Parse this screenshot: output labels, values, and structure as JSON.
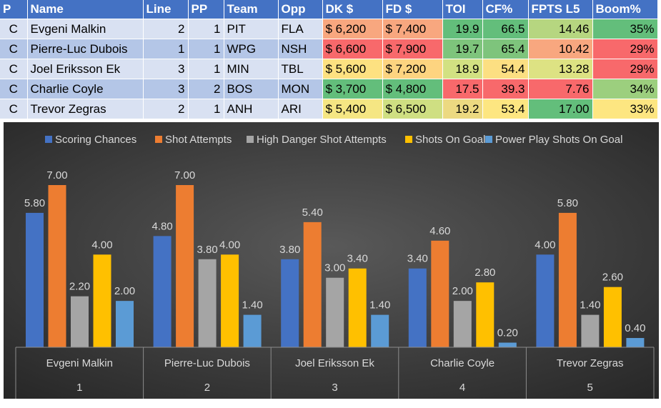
{
  "table": {
    "headers": [
      "P",
      "Name",
      "Line",
      "PP",
      "Team",
      "Opp",
      "DK $",
      "FD $",
      "TOI",
      "CF%",
      "FPTS L5",
      "Boom%"
    ],
    "rows": [
      {
        "p": "C",
        "name": "Evgeni Malkin",
        "line": "2",
        "pp": "1",
        "team": "PIT",
        "opp": "FLA",
        "dk": "$ 6,200",
        "fd": "$ 7,400",
        "toi": "19.9",
        "cf": "66.5",
        "fpts": "14.46",
        "boom": "35%"
      },
      {
        "p": "C",
        "name": "Pierre-Luc Dubois",
        "line": "1",
        "pp": "1",
        "team": "WPG",
        "opp": "NSH",
        "dk": "$ 6,600",
        "fd": "$ 7,900",
        "toi": "19.7",
        "cf": "65.4",
        "fpts": "10.42",
        "boom": "29%"
      },
      {
        "p": "C",
        "name": "Joel Eriksson Ek",
        "line": "3",
        "pp": "1",
        "team": "MIN",
        "opp": "TBL",
        "dk": "$ 5,600",
        "fd": "$ 7,200",
        "toi": "18.9",
        "cf": "54.4",
        "fpts": "13.28",
        "boom": "29%"
      },
      {
        "p": "C",
        "name": "Charlie Coyle",
        "line": "3",
        "pp": "2",
        "team": "BOS",
        "opp": "MON",
        "dk": "$ 3,700",
        "fd": "$ 4,800",
        "toi": "17.5",
        "cf": "39.3",
        "fpts": "7.76",
        "boom": "34%"
      },
      {
        "p": "C",
        "name": "Trevor Zegras",
        "line": "2",
        "pp": "1",
        "team": "ANH",
        "opp": "ARI",
        "dk": "$ 5,400",
        "fd": "$ 6,500",
        "toi": "19.2",
        "cf": "53.4",
        "fpts": "17.00",
        "boom": "33%"
      }
    ],
    "cell_colors": {
      "dk": [
        "#f8a77f",
        "#f8696b",
        "#fde181",
        "#63be7b",
        "#f5e683"
      ],
      "fd": [
        "#f8a77f",
        "#f8696b",
        "#fdd480",
        "#63be7b",
        "#cfdf82"
      ],
      "toi": [
        "#63be7b",
        "#7ec47c",
        "#d2e182",
        "#f8696b",
        "#ecd981"
      ],
      "cf": [
        "#63be7b",
        "#7ec47c",
        "#fcdf82",
        "#f8696b",
        "#fde681"
      ],
      "fpts": [
        "#b6d680",
        "#f8a77f",
        "#dde283",
        "#f8696b",
        "#63be7b"
      ],
      "boom": [
        "#63be7b",
        "#f8696b",
        "#f8696b",
        "#9ccf7e",
        "#fde681"
      ]
    }
  },
  "colors": {
    "series": [
      "#4472c4",
      "#ed7d31",
      "#a5a5a5",
      "#ffc000",
      "#5b9bd5"
    ],
    "chart_bg": "#404040",
    "chart_text": "#d9d9d9",
    "header_bg": "#4472c4"
  },
  "chart_data": {
    "type": "bar",
    "categories": [
      {
        "name": "Evgeni Malkin",
        "index": "1"
      },
      {
        "name": "Pierre-Luc Dubois",
        "index": "2"
      },
      {
        "name": "Joel Eriksson Ek",
        "index": "3"
      },
      {
        "name": "Charlie Coyle",
        "index": "4"
      },
      {
        "name": "Trevor Zegras",
        "index": "5"
      }
    ],
    "series": [
      {
        "name": "Scoring Chances",
        "values": [
          5.8,
          4.8,
          3.8,
          3.4,
          4.0
        ],
        "labels": [
          "5.80",
          "4.80",
          "3.80",
          "3.40",
          "4.00"
        ]
      },
      {
        "name": "Shot Attempts",
        "values": [
          7.0,
          7.0,
          5.4,
          4.6,
          5.8
        ],
        "labels": [
          "7.00",
          "7.00",
          "5.40",
          "4.60",
          "5.80"
        ]
      },
      {
        "name": "High Danger Shot Attempts",
        "values": [
          2.2,
          3.8,
          3.0,
          2.0,
          1.4
        ],
        "labels": [
          "2.20",
          "3.80",
          "3.00",
          "2.00",
          "1.40"
        ]
      },
      {
        "name": "Shots On Goal",
        "values": [
          4.0,
          4.0,
          3.4,
          2.8,
          2.6
        ],
        "labels": [
          "4.00",
          "4.00",
          "3.40",
          "2.80",
          "2.60"
        ]
      },
      {
        "name": "Power Play Shots On Goal",
        "values": [
          2.0,
          1.4,
          1.4,
          0.2,
          0.4
        ],
        "labels": [
          "2.00",
          "1.40",
          "1.40",
          "0.20",
          "0.40"
        ]
      }
    ],
    "ylim": [
      0,
      7.0
    ],
    "legend": "top",
    "grid": false
  }
}
